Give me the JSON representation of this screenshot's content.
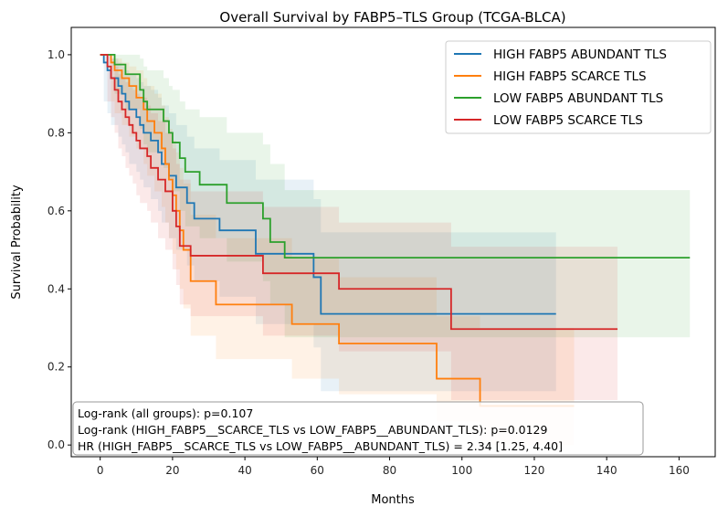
{
  "chart_data": {
    "type": "line",
    "subtype": "kaplan-meier-step",
    "title": "Overall Survival by FABP5–TLS Group (TCGA-BLCA)",
    "xlabel": "Months",
    "ylabel": "Survival Probability",
    "xlim": [
      -8,
      170
    ],
    "ylim": [
      -0.03,
      1.07
    ],
    "xticks": [
      0,
      20,
      40,
      60,
      80,
      100,
      120,
      140,
      160
    ],
    "yticks": [
      0.0,
      0.2,
      0.4,
      0.6,
      0.8,
      1.0
    ],
    "ytick_labels": [
      "0.0",
      "0.2",
      "0.4",
      "0.6",
      "0.8",
      "1.0"
    ],
    "grid": false,
    "legend_position": "top-right",
    "confidence_bands": true,
    "series": [
      {
        "name": "HIGH FABP5  ABUNDANT TLS",
        "color": "#1f77b4",
        "times": [
          0,
          1,
          2,
          3,
          5,
          6,
          7,
          8,
          10,
          11,
          12,
          14,
          16,
          17,
          19,
          21,
          24,
          26,
          33,
          43,
          59,
          61
        ],
        "end": 126,
        "survival": [
          1,
          0.98,
          0.96,
          0.94,
          0.92,
          0.9,
          0.88,
          0.86,
          0.84,
          0.82,
          0.8,
          0.78,
          0.75,
          0.72,
          0.69,
          0.66,
          0.62,
          0.58,
          0.55,
          0.49,
          0.43,
          0.336
        ],
        "ci_upper": [
          1,
          1,
          1,
          0.99,
          0.98,
          0.97,
          0.96,
          0.95,
          0.94,
          0.93,
          0.92,
          0.91,
          0.89,
          0.87,
          0.85,
          0.82,
          0.79,
          0.76,
          0.73,
          0.68,
          0.63,
          0.545
        ],
        "ci_lower": [
          1,
          0.88,
          0.85,
          0.82,
          0.79,
          0.77,
          0.75,
          0.72,
          0.7,
          0.68,
          0.66,
          0.63,
          0.6,
          0.57,
          0.53,
          0.5,
          0.46,
          0.42,
          0.38,
          0.31,
          0.25,
          0.138
        ]
      },
      {
        "name": "HIGH FABP5  SCARCE TLS",
        "color": "#ff7f0e",
        "times": [
          0,
          3,
          4,
          6,
          8,
          10,
          12,
          13,
          15,
          17,
          18,
          19,
          20,
          21,
          22,
          23,
          25,
          32,
          53,
          66,
          93,
          105
        ],
        "end": 131,
        "survival": [
          1,
          0.98,
          0.96,
          0.94,
          0.92,
          0.89,
          0.86,
          0.83,
          0.8,
          0.76,
          0.72,
          0.68,
          0.64,
          0.6,
          0.55,
          0.5,
          0.42,
          0.36,
          0.31,
          0.26,
          0.17,
          0.1
        ],
        "ci_upper": [
          1,
          1,
          0.99,
          0.98,
          0.97,
          0.96,
          0.94,
          0.92,
          0.9,
          0.87,
          0.84,
          0.81,
          0.78,
          0.75,
          0.71,
          0.67,
          0.59,
          0.53,
          0.48,
          0.43,
          0.33,
          0.3
        ],
        "ci_lower": [
          1,
          0.88,
          0.85,
          0.82,
          0.79,
          0.76,
          0.72,
          0.69,
          0.65,
          0.61,
          0.57,
          0.53,
          0.49,
          0.45,
          0.4,
          0.35,
          0.28,
          0.22,
          0.17,
          0.13,
          0.06,
          0.0
        ]
      },
      {
        "name": "LOW FABP5  ABUNDANT TLS",
        "color": "#2ca02c",
        "times": [
          0,
          4,
          7,
          11,
          12,
          13,
          17.5,
          19,
          20,
          22,
          23.5,
          27.5,
          35,
          45,
          47,
          51
        ],
        "end": 163,
        "survival": [
          1,
          0.975,
          0.95,
          0.91,
          0.88,
          0.86,
          0.83,
          0.8,
          0.775,
          0.735,
          0.7,
          0.667,
          0.62,
          0.58,
          0.52,
          0.48
        ],
        "ci_upper": [
          1,
          1,
          1,
          0.99,
          0.97,
          0.96,
          0.94,
          0.92,
          0.91,
          0.88,
          0.86,
          0.84,
          0.8,
          0.77,
          0.72,
          0.653
        ],
        "ci_lower": [
          1,
          0.9,
          0.86,
          0.81,
          0.77,
          0.75,
          0.71,
          0.68,
          0.65,
          0.6,
          0.56,
          0.53,
          0.47,
          0.42,
          0.36,
          0.276
        ]
      },
      {
        "name": "LOW FABP5  SCARCE TLS",
        "color": "#d62728",
        "times": [
          0,
          2,
          3,
          4,
          5,
          6,
          7,
          8,
          9,
          10,
          11,
          13,
          14,
          16,
          18,
          20,
          21,
          22,
          25,
          45,
          66,
          97
        ],
        "end": 143,
        "survival": [
          1,
          0.97,
          0.94,
          0.91,
          0.88,
          0.86,
          0.84,
          0.82,
          0.8,
          0.78,
          0.76,
          0.74,
          0.71,
          0.68,
          0.65,
          0.6,
          0.56,
          0.51,
          0.485,
          0.44,
          0.4,
          0.297
        ],
        "ci_upper": [
          1,
          1,
          0.99,
          0.97,
          0.95,
          0.94,
          0.93,
          0.92,
          0.91,
          0.9,
          0.89,
          0.87,
          0.85,
          0.83,
          0.8,
          0.76,
          0.72,
          0.68,
          0.65,
          0.61,
          0.57,
          0.508
        ],
        "ci_lower": [
          1,
          0.88,
          0.84,
          0.8,
          0.76,
          0.74,
          0.71,
          0.69,
          0.67,
          0.64,
          0.62,
          0.6,
          0.57,
          0.53,
          0.5,
          0.45,
          0.41,
          0.36,
          0.33,
          0.28,
          0.24,
          0.115
        ]
      }
    ],
    "annotations": [
      "Log-rank (all groups): p=0.107",
      "Log-rank (HIGH_FABP5__SCARCE_TLS vs LOW_FABP5__ABUNDANT_TLS): p=0.0129",
      "HR (HIGH_FABP5__SCARCE_TLS vs LOW_FABP5__ABUNDANT_TLS) = 2.34 [1.25, 4.40]"
    ]
  }
}
